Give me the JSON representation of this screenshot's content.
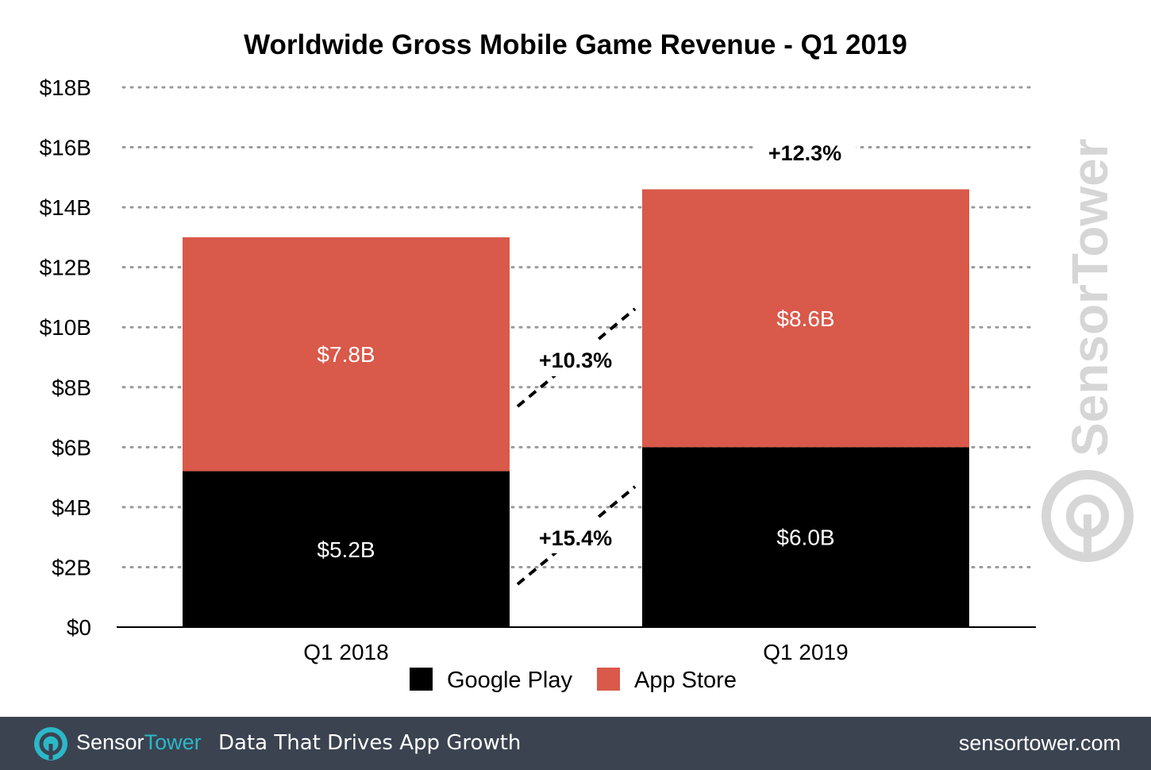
{
  "colors": {
    "google_play": "#000000",
    "app_store": "#d9594a",
    "footer_bg": "#3b4350",
    "brand_accent": "#2bb8c9",
    "watermark": "#d6d6d6"
  },
  "watermark": {
    "text": "SensorTower",
    "icon": "sensortower-logo-icon"
  },
  "chart_data": {
    "type": "bar",
    "stacked": true,
    "title": "Worldwide Gross Mobile Game Revenue - Q1 2019",
    "xlabel": "",
    "ylabel": "",
    "categories": [
      "Q1 2018",
      "Q1 2019"
    ],
    "series": [
      {
        "name": "Google Play",
        "values": [
          5.2,
          6.0
        ],
        "labels": [
          "$5.2B",
          "$6.0B"
        ],
        "color": "#000000"
      },
      {
        "name": "App Store",
        "values": [
          7.8,
          8.6
        ],
        "labels": [
          "$7.8B",
          "$8.6B"
        ],
        "color": "#d9594a"
      }
    ],
    "ylim": [
      0,
      18
    ],
    "yticks": [
      0,
      2,
      4,
      6,
      8,
      10,
      12,
      14,
      16,
      18
    ],
    "ytick_labels": [
      "$0",
      "$2B",
      "$4B",
      "$6B",
      "$8B",
      "$10B",
      "$12B",
      "$14B",
      "$16B",
      "$18B"
    ],
    "grid": "dotted horizontal",
    "legend": "bottom-center",
    "annotations": [
      {
        "text": "+15.4%",
        "refers_to": "Google Play growth"
      },
      {
        "text": "+10.3%",
        "refers_to": "App Store growth"
      },
      {
        "text": "+12.3%",
        "refers_to": "Total growth"
      }
    ]
  },
  "footer": {
    "brand_part1": "Sensor",
    "brand_part2": "Tower",
    "tagline": "Data That Drives App Growth",
    "url": "sensortower.com",
    "logo_icon": "sensortower-logo-icon"
  }
}
